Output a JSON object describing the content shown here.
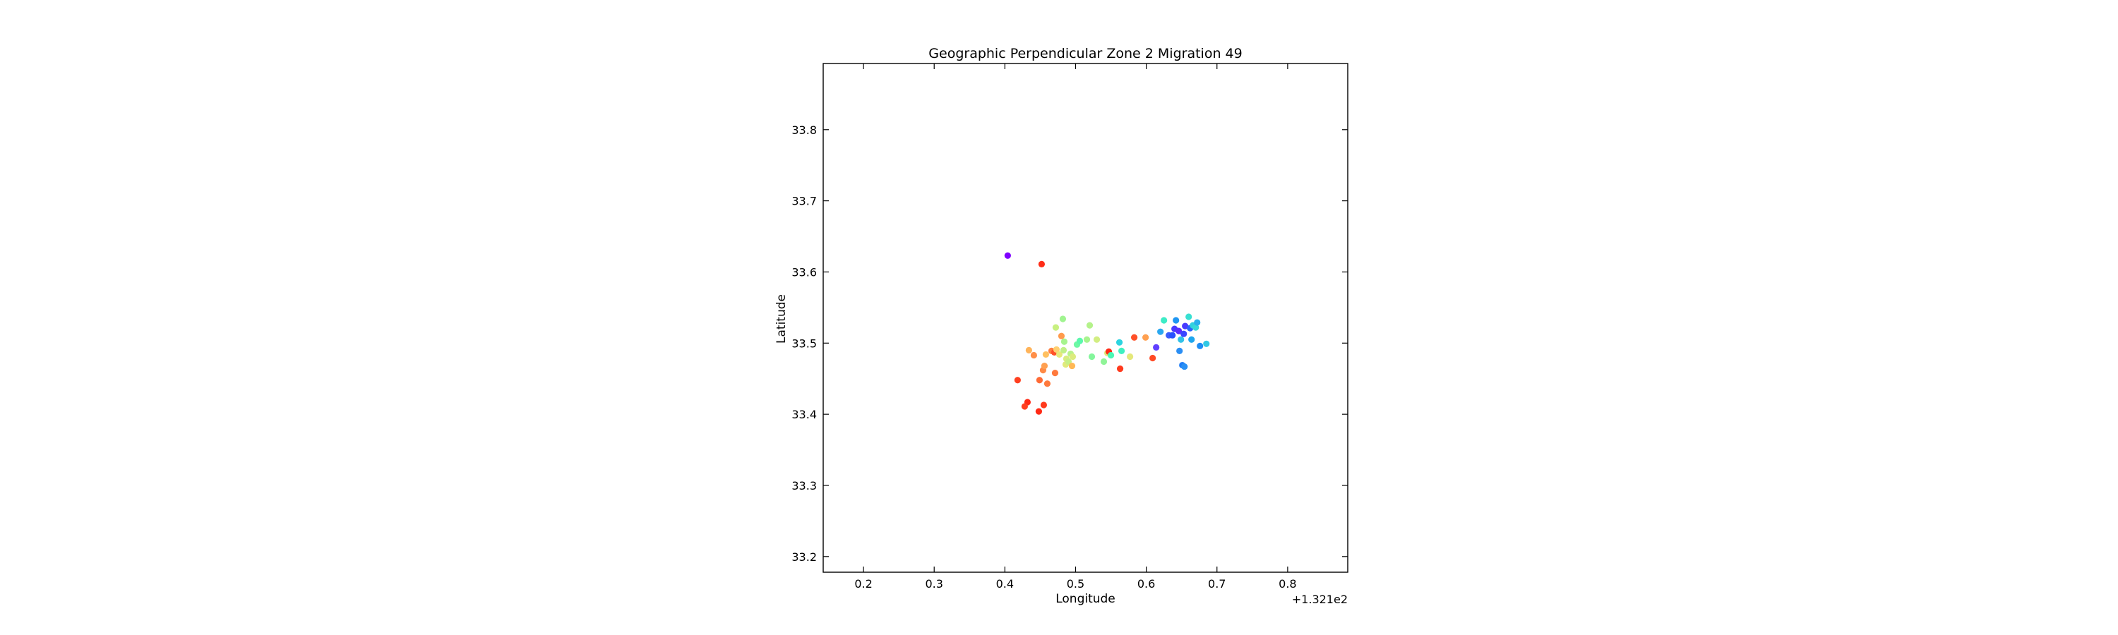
{
  "chart_data": {
    "type": "scatter",
    "title": "Geographic Perpendicular Zone 2 Migration 49",
    "xlabel": "Longitude",
    "ylabel": "Latitude",
    "x_offset_label": "+1.321e2",
    "xlim": [
      0.143,
      0.885
    ],
    "ylim": [
      33.178,
      33.893
    ],
    "xticks": [
      0.2,
      0.3,
      0.4,
      0.5,
      0.6,
      0.7,
      0.8
    ],
    "xtick_labels": [
      "0.2",
      "0.3",
      "0.4",
      "0.5",
      "0.6",
      "0.7",
      "0.8"
    ],
    "yticks": [
      33.2,
      33.3,
      33.4,
      33.5,
      33.6,
      33.7,
      33.8
    ],
    "ytick_labels": [
      "33.2",
      "33.3",
      "33.4",
      "33.5",
      "33.6",
      "33.7",
      "33.8"
    ],
    "grid": false,
    "points": [
      {
        "x": 0.404,
        "y": 33.623,
        "color": "#7f00ff"
      },
      {
        "x": 0.452,
        "y": 33.611,
        "color": "#ff2d17"
      },
      {
        "x": 0.418,
        "y": 33.448,
        "color": "#ff3f1f"
      },
      {
        "x": 0.432,
        "y": 33.417,
        "color": "#ff2a15"
      },
      {
        "x": 0.428,
        "y": 33.411,
        "color": "#ff4020"
      },
      {
        "x": 0.448,
        "y": 33.404,
        "color": "#ff2a15"
      },
      {
        "x": 0.455,
        "y": 33.413,
        "color": "#ff3a1d"
      },
      {
        "x": 0.449,
        "y": 33.448,
        "color": "#ff6a35"
      },
      {
        "x": 0.46,
        "y": 33.443,
        "color": "#ff7a3d"
      },
      {
        "x": 0.454,
        "y": 33.462,
        "color": "#ff8a45"
      },
      {
        "x": 0.456,
        "y": 33.468,
        "color": "#ffa050"
      },
      {
        "x": 0.471,
        "y": 33.458,
        "color": "#ff7a3d"
      },
      {
        "x": 0.434,
        "y": 33.49,
        "color": "#ffb45a"
      },
      {
        "x": 0.441,
        "y": 33.483,
        "color": "#ff8f48"
      },
      {
        "x": 0.458,
        "y": 33.484,
        "color": "#ffc060"
      },
      {
        "x": 0.466,
        "y": 33.489,
        "color": "#ff8040"
      },
      {
        "x": 0.47,
        "y": 33.487,
        "color": "#ff5028"
      },
      {
        "x": 0.473,
        "y": 33.491,
        "color": "#ffd070"
      },
      {
        "x": 0.477,
        "y": 33.484,
        "color": "#e6e87a"
      },
      {
        "x": 0.472,
        "y": 33.522,
        "color": "#c8f080"
      },
      {
        "x": 0.48,
        "y": 33.51,
        "color": "#ff9a4c"
      },
      {
        "x": 0.482,
        "y": 33.534,
        "color": "#a0f490"
      },
      {
        "x": 0.484,
        "y": 33.502,
        "color": "#a6f48e"
      },
      {
        "x": 0.483,
        "y": 33.49,
        "color": "#c0f088"
      },
      {
        "x": 0.487,
        "y": 33.478,
        "color": "#d8ec80"
      },
      {
        "x": 0.486,
        "y": 33.47,
        "color": "#e0ea7c"
      },
      {
        "x": 0.49,
        "y": 33.474,
        "color": "#c6f086"
      },
      {
        "x": 0.495,
        "y": 33.468,
        "color": "#ffb855"
      },
      {
        "x": 0.493,
        "y": 33.485,
        "color": "#b8f28a"
      },
      {
        "x": 0.496,
        "y": 33.481,
        "color": "#dceb7e"
      },
      {
        "x": 0.502,
        "y": 33.498,
        "color": "#6ef8a4"
      },
      {
        "x": 0.506,
        "y": 33.503,
        "color": "#5cf8ac"
      },
      {
        "x": 0.516,
        "y": 33.505,
        "color": "#a8f48e"
      },
      {
        "x": 0.52,
        "y": 33.525,
        "color": "#b4f28a"
      },
      {
        "x": 0.523,
        "y": 33.481,
        "color": "#84f69c"
      },
      {
        "x": 0.53,
        "y": 33.505,
        "color": "#d2ee82"
      },
      {
        "x": 0.54,
        "y": 33.474,
        "color": "#90f498"
      },
      {
        "x": 0.545,
        "y": 33.486,
        "color": "#e0ea7c"
      },
      {
        "x": 0.547,
        "y": 33.488,
        "color": "#ff2a15"
      },
      {
        "x": 0.55,
        "y": 33.483,
        "color": "#4af8b4"
      },
      {
        "x": 0.562,
        "y": 33.501,
        "color": "#2cd4e0"
      },
      {
        "x": 0.565,
        "y": 33.489,
        "color": "#3ef0c0"
      },
      {
        "x": 0.563,
        "y": 33.464,
        "color": "#ff3a1d"
      },
      {
        "x": 0.577,
        "y": 33.481,
        "color": "#e4e87a"
      },
      {
        "x": 0.583,
        "y": 33.508,
        "color": "#ff5028"
      },
      {
        "x": 0.599,
        "y": 33.508,
        "color": "#ffa050"
      },
      {
        "x": 0.609,
        "y": 33.479,
        "color": "#ff4a25"
      },
      {
        "x": 0.614,
        "y": 33.494,
        "color": "#6040ff"
      },
      {
        "x": 0.62,
        "y": 33.516,
        "color": "#2aa8f0"
      },
      {
        "x": 0.625,
        "y": 33.532,
        "color": "#3cecc6"
      },
      {
        "x": 0.632,
        "y": 33.511,
        "color": "#3a5cfc"
      },
      {
        "x": 0.637,
        "y": 33.511,
        "color": "#2850fe"
      },
      {
        "x": 0.64,
        "y": 33.52,
        "color": "#4838ff"
      },
      {
        "x": 0.642,
        "y": 33.532,
        "color": "#1e96f2"
      },
      {
        "x": 0.646,
        "y": 33.517,
        "color": "#5a2cff"
      },
      {
        "x": 0.649,
        "y": 33.505,
        "color": "#32c2e8"
      },
      {
        "x": 0.647,
        "y": 33.489,
        "color": "#2a8ef4"
      },
      {
        "x": 0.651,
        "y": 33.469,
        "color": "#1e7cf6"
      },
      {
        "x": 0.654,
        "y": 33.467,
        "color": "#2a90f4"
      },
      {
        "x": 0.653,
        "y": 33.513,
        "color": "#3a46ff"
      },
      {
        "x": 0.655,
        "y": 33.524,
        "color": "#4a3aff"
      },
      {
        "x": 0.66,
        "y": 33.537,
        "color": "#38e0d2"
      },
      {
        "x": 0.662,
        "y": 33.521,
        "color": "#2a64fc"
      },
      {
        "x": 0.664,
        "y": 33.505,
        "color": "#1ea6ee"
      },
      {
        "x": 0.666,
        "y": 33.525,
        "color": "#30d0e0"
      },
      {
        "x": 0.67,
        "y": 33.522,
        "color": "#38d8d8"
      },
      {
        "x": 0.672,
        "y": 33.529,
        "color": "#2ab0ee"
      },
      {
        "x": 0.676,
        "y": 33.496,
        "color": "#1e8cf4"
      },
      {
        "x": 0.685,
        "y": 33.499,
        "color": "#30c8e4"
      }
    ]
  }
}
